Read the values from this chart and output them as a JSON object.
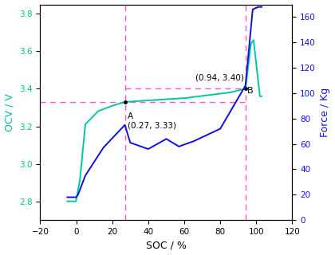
{
  "xlabel": "SOC / %",
  "ylabel_left": "OCV / V",
  "ylabel_right": "Force / Kg",
  "xlim": [
    -20,
    120
  ],
  "ylim_left": [
    2.7,
    3.85
  ],
  "ylim_right": [
    0,
    170
  ],
  "xticks": [
    -20,
    0,
    20,
    40,
    60,
    80,
    100,
    120
  ],
  "yticks_left": [
    2.8,
    3.0,
    3.2,
    3.4,
    3.6,
    3.8
  ],
  "yticks_right": [
    0,
    20,
    40,
    60,
    80,
    100,
    120,
    140,
    160
  ],
  "xA_pct": 27,
  "xB_pct": 94,
  "yA_ocv": 3.33,
  "yB_ocv": 3.4,
  "color_ocv": "#00C8A0",
  "color_force": "#1010DD",
  "color_dashed": "#FF55CC",
  "left_label_color": "#00C090",
  "right_label_color": "#1010DD"
}
